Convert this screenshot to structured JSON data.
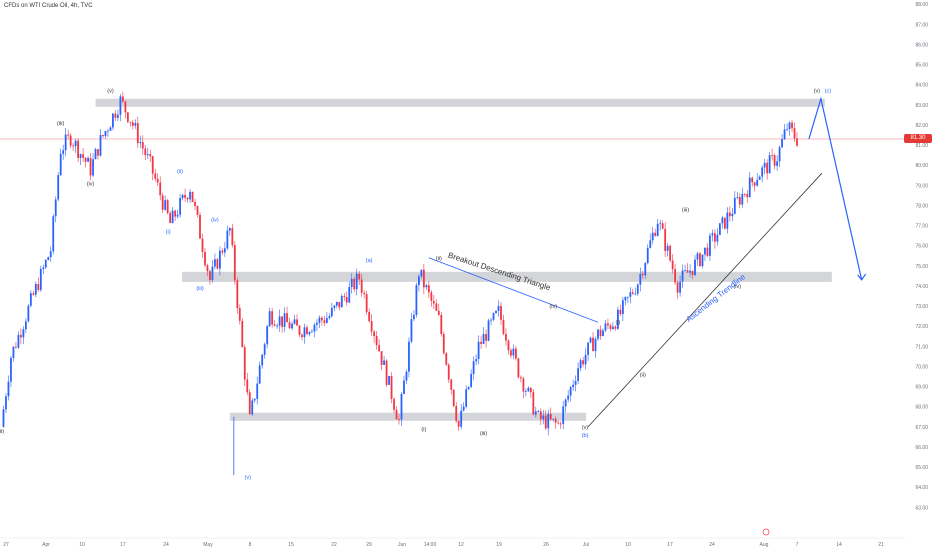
{
  "title": "CFDs on WTI Crude Oil, 4h, TVC",
  "last_price": "81.30",
  "colors": {
    "up": "#2962ff",
    "down": "#f23645",
    "zone": "#cfd0d5",
    "price_line": "#f23645",
    "annotation_blue": "#2962ff",
    "trendline": "#000000",
    "tick_text": "#6b6f7a"
  },
  "chart_data": {
    "type": "candlestick",
    "y_axis": {
      "side": "right",
      "ylim": [
        62,
        88
      ],
      "ticks": [
        "63.00",
        "64.00",
        "65.00",
        "66.00",
        "67.00",
        "68.00",
        "69.00",
        "70.00",
        "71.00",
        "72.00",
        "73.00",
        "74.00",
        "75.00",
        "76.00",
        "77.00",
        "78.00",
        "79.00",
        "80.00",
        "81.00",
        "82.00",
        "83.00",
        "84.00",
        "85.00",
        "86.00",
        "87.00",
        "88.00"
      ]
    },
    "x_axis": {
      "ticks": [
        "27",
        "Apr",
        "10",
        "17",
        "24",
        "May",
        "8",
        "15",
        "22",
        "29",
        "Jun",
        "14:00",
        "12",
        "19",
        "26",
        "Jul",
        "10",
        "17",
        "24",
        "Aug",
        "7",
        "14",
        "21"
      ]
    },
    "path_points": [
      {
        "t": 0,
        "y": 67.0
      },
      {
        "t": 1,
        "y": 70.5
      },
      {
        "t": 3,
        "y": 73.2
      },
      {
        "t": 5,
        "y": 75.8
      },
      {
        "t": 6,
        "y": 80.8
      },
      {
        "t": 7,
        "y": 81.4
      },
      {
        "t": 9,
        "y": 79.8
      },
      {
        "t": 10,
        "y": 81.2
      },
      {
        "t": 12,
        "y": 83.2
      },
      {
        "t": 13,
        "y": 82.3
      },
      {
        "t": 15,
        "y": 80.0
      },
      {
        "t": 17,
        "y": 77.1
      },
      {
        "t": 19,
        "y": 78.9
      },
      {
        "t": 21,
        "y": 74.3
      },
      {
        "t": 23,
        "y": 76.8
      },
      {
        "t": 25,
        "y": 67.3
      },
      {
        "t": 27,
        "y": 72.6
      },
      {
        "t": 30,
        "y": 71.8
      },
      {
        "t": 33,
        "y": 72.5
      },
      {
        "t": 36,
        "y": 74.4
      },
      {
        "t": 40,
        "y": 67.3
      },
      {
        "t": 42,
        "y": 74.7
      },
      {
        "t": 44,
        "y": 72.3
      },
      {
        "t": 46,
        "y": 67.0
      },
      {
        "t": 48,
        "y": 71.0
      },
      {
        "t": 50,
        "y": 72.7
      },
      {
        "t": 52,
        "y": 69.8
      },
      {
        "t": 54,
        "y": 67.4
      },
      {
        "t": 56,
        "y": 67.1
      },
      {
        "t": 58,
        "y": 70.0
      },
      {
        "t": 60,
        "y": 71.6
      },
      {
        "t": 62,
        "y": 72.4
      },
      {
        "t": 64,
        "y": 74.2
      },
      {
        "t": 66,
        "y": 77.3
      },
      {
        "t": 68,
        "y": 74.1
      },
      {
        "t": 70,
        "y": 75.2
      },
      {
        "t": 72,
        "y": 76.6
      },
      {
        "t": 74,
        "y": 78.2
      },
      {
        "t": 76,
        "y": 79.5
      },
      {
        "t": 78,
        "y": 80.4
      },
      {
        "t": 79,
        "y": 81.9
      },
      {
        "t": 80,
        "y": 81.3
      }
    ],
    "zones": [
      {
        "name": "top-zone",
        "from": 82.9,
        "to": 83.3
      },
      {
        "name": "middle-zone",
        "from": 74.2,
        "to": 74.7
      },
      {
        "name": "bottom-zone",
        "from": 67.3,
        "to": 67.7
      }
    ],
    "wave_labels": [
      {
        "text": "(ii)",
        "color": "dark",
        "t": 0,
        "y": 66.7
      },
      {
        "text": "(iii)",
        "color": "dark",
        "t": 6,
        "y": 82.0
      },
      {
        "text": "(iv)",
        "color": "dark",
        "t": 9,
        "y": 79.0
      },
      {
        "text": "(v)",
        "color": "dark",
        "t": 11,
        "y": 83.6
      },
      {
        "text": "(i)",
        "color": "blue",
        "t": 16.8,
        "y": 76.6
      },
      {
        "text": "(ii)",
        "color": "blue",
        "t": 18,
        "y": 79.6
      },
      {
        "text": "(iii)",
        "color": "blue",
        "t": 20,
        "y": 73.8
      },
      {
        "text": "(iv)",
        "color": "blue",
        "t": 21.5,
        "y": 77.2
      },
      {
        "text": "(v)",
        "color": "blue",
        "t": 24.8,
        "y": 64.4
      },
      {
        "text": "(a)",
        "color": "blue",
        "t": 37,
        "y": 75.2
      },
      {
        "text": "(i)",
        "color": "dark",
        "t": 42.5,
        "y": 66.8
      },
      {
        "text": "(ii)",
        "color": "dark",
        "t": 44,
        "y": 75.3
      },
      {
        "text": "(iii)",
        "color": "dark",
        "t": 48.5,
        "y": 66.6
      },
      {
        "text": "(iv)",
        "color": "dark",
        "t": 55.5,
        "y": 72.9
      },
      {
        "text": "(v)",
        "color": "dark",
        "t": 58.7,
        "y": 66.9
      },
      {
        "text": "(b)",
        "color": "blue",
        "t": 58.7,
        "y": 66.5
      },
      {
        "text": "(i)",
        "color": "dark",
        "t": 62,
        "y": 72.1
      },
      {
        "text": "(ii)",
        "color": "dark",
        "t": 64.5,
        "y": 69.5
      },
      {
        "text": "(iii)",
        "color": "dark",
        "t": 68.8,
        "y": 77.7
      },
      {
        "text": "(iv)",
        "color": "dark",
        "t": 74,
        "y": 73.9
      },
      {
        "text": "(v)",
        "color": "dark",
        "t": 82,
        "y": 83.6
      },
      {
        "text": "(c)",
        "color": "blue",
        "t": 83.1,
        "y": 83.6
      }
    ],
    "annotations": [
      {
        "text": "Breakout Descending Triangle",
        "color": "dark",
        "t": 50,
        "y": 74.6,
        "angle": 18
      },
      {
        "text": "Ascending Trendline",
        "color": "blue",
        "t": 72,
        "y": 73.3,
        "angle": -38
      }
    ],
    "lines": [
      {
        "name": "descending-triangle-line",
        "color": "blue",
        "points": [
          {
            "t": 43,
            "y": 75.4
          },
          {
            "t": 60,
            "y": 72.2
          }
        ]
      },
      {
        "name": "ascending-trendline",
        "color": "dark",
        "points": [
          {
            "t": 59,
            "y": 67.0
          },
          {
            "t": 82.5,
            "y": 79.6
          }
        ]
      },
      {
        "name": "projection-path",
        "color": "blue",
        "points": [
          {
            "t": 81.2,
            "y": 81.3
          },
          {
            "t": 82.4,
            "y": 83.3
          },
          {
            "t": 86.5,
            "y": 74.3
          }
        ]
      }
    ]
  }
}
